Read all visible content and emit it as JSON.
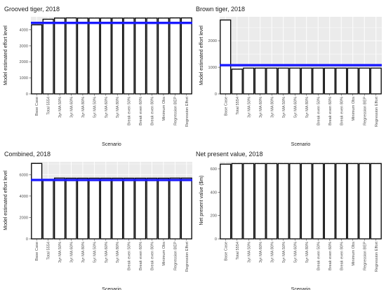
{
  "chart_data": [
    {
      "type": "bar",
      "title": "Grooved tiger, 2018",
      "xlabel": "Scenario",
      "ylabel": "Model estimated effort level",
      "categories": [
        "Base Case",
        "Total 5554",
        "3yr MA 50%",
        "3yr MA 60%",
        "3yr MA 80%",
        "5yr MA 50%",
        "5yr MA 60%",
        "5yr MA 80%",
        "Break even 50%",
        "Break even 60%",
        "Break even 80%",
        "Minimum Obs",
        "Regression BEP",
        "Regression Effort"
      ],
      "values": [
        4300,
        4650,
        4720,
        4730,
        4720,
        4720,
        4720,
        4720,
        4720,
        4720,
        4720,
        4720,
        4730,
        4730
      ],
      "reference_line": 4420,
      "ylim": [
        0,
        4800
      ],
      "yticks": [
        0,
        1000,
        2000,
        3000,
        4000
      ],
      "grid": true,
      "reference_color": "#1a1aff",
      "bar_edge": "#000000",
      "bar_fill": "#ffffff",
      "panel_bg": "#ebebeb"
    },
    {
      "type": "bar",
      "title": "Brown tiger, 2018",
      "xlabel": "Scenario",
      "ylabel": "Model estimated effort level",
      "categories": [
        "Base Case",
        "Total 5554",
        "3yr MA 50%",
        "3yr MA 60%",
        "3yr MA 80%",
        "5yr MA 50%",
        "5yr MA 60%",
        "5yr MA 80%",
        "Break even 50%",
        "Break even 60%",
        "Break even 80%",
        "Minimum Obs",
        "Regression BEP",
        "Regression Effort"
      ],
      "values": [
        2780,
        930,
        970,
        970,
        970,
        970,
        970,
        970,
        970,
        970,
        970,
        970,
        970,
        970
      ],
      "reference_line": 1080,
      "ylim": [
        0,
        2900
      ],
      "yticks": [
        0,
        1000,
        2000
      ],
      "grid": true,
      "reference_color": "#1a1aff",
      "bar_edge": "#000000",
      "bar_fill": "#ffffff",
      "panel_bg": "#ebebeb"
    },
    {
      "type": "bar",
      "title": "Combined, 2018",
      "xlabel": "Scenario",
      "ylabel": "Model estimated effort level",
      "categories": [
        "Base Case",
        "Total 5554",
        "3yr MA 50%",
        "3yr MA 60%",
        "3yr MA 80%",
        "5yr MA 50%",
        "5yr MA 60%",
        "5yr MA 80%",
        "Break even 50%",
        "Break even 60%",
        "Break even 80%",
        "Minimum Obs",
        "Regression BEP",
        "Regression Effort"
      ],
      "values": [
        7050,
        5560,
        5680,
        5670,
        5670,
        5670,
        5670,
        5670,
        5670,
        5670,
        5670,
        5670,
        5680,
        5680
      ],
      "reference_line": 5500,
      "ylim": [
        0,
        7200
      ],
      "yticks": [
        0,
        2000,
        4000,
        6000
      ],
      "grid": true,
      "reference_color": "#1a1aff",
      "bar_edge": "#000000",
      "bar_fill": "#ffffff",
      "panel_bg": "#ebebeb"
    },
    {
      "type": "bar",
      "title": "Net present value, 2018",
      "xlabel": "Scenario",
      "ylabel": "Net present value ($m)",
      "categories": [
        "Base Case",
        "Total 5554",
        "3yr MA 50%",
        "3yr MA 60%",
        "3yr MA 80%",
        "5yr MA 50%",
        "5yr MA 60%",
        "5yr MA 80%",
        "Break even 50%",
        "Break even 60%",
        "Break even 80%",
        "Minimum Obs",
        "Regression BEP",
        "Regression Effort"
      ],
      "values": [
        640,
        645,
        645,
        645,
        645,
        645,
        645,
        645,
        645,
        645,
        645,
        645,
        645,
        645
      ],
      "reference_line": null,
      "ylim": [
        0,
        660
      ],
      "yticks": [
        0,
        200,
        400,
        600
      ],
      "grid": true,
      "reference_color": "#1a1aff",
      "bar_edge": "#000000",
      "bar_fill": "#ffffff",
      "panel_bg": "#ebebeb"
    }
  ]
}
